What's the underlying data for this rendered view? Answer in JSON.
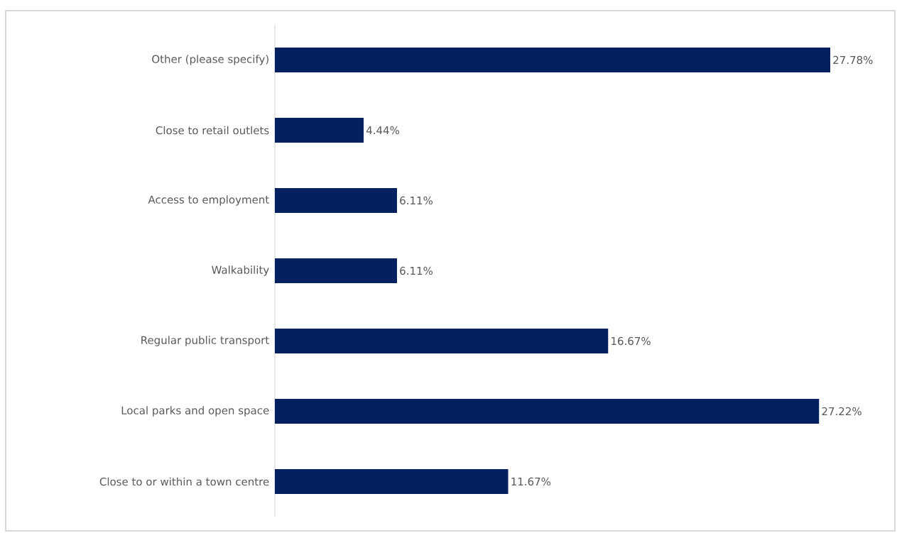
{
  "chart_data": {
    "type": "bar",
    "orientation": "horizontal",
    "categories": [
      "Other (please specify)",
      "Close to retail outlets",
      "Access to employment",
      "Walkability",
      "Regular public transport",
      "Local parks and open space",
      "Close to or within a town centre"
    ],
    "values": [
      27.78,
      4.44,
      6.11,
      6.11,
      16.67,
      27.22,
      11.67
    ],
    "value_labels": [
      "27.78%",
      "4.44%",
      "6.11%",
      "6.11%",
      "16.67%",
      "27.22%",
      "11.67%"
    ],
    "color": "#05205e"
  }
}
